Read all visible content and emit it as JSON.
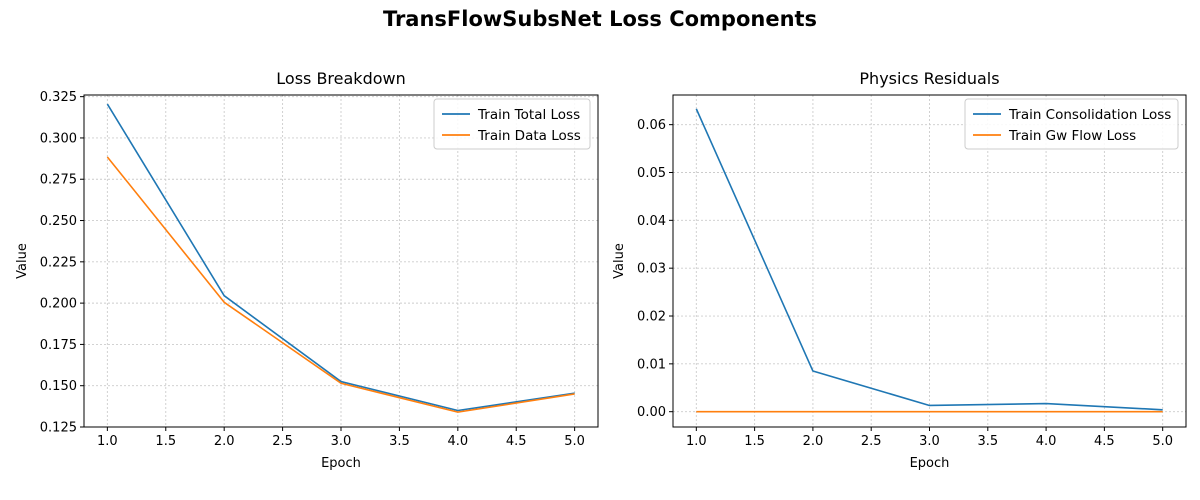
{
  "figure": {
    "title": "TransFlowSubsNet Loss Components"
  },
  "chart_data": [
    {
      "type": "line",
      "title": "Loss Breakdown",
      "xlabel": "Epoch",
      "ylabel": "Value",
      "x": [
        1,
        2,
        3,
        4,
        5
      ],
      "xlim": [
        0.8,
        5.2
      ],
      "ylim": [
        0.125,
        0.326
      ],
      "xticks": [
        "1.0",
        "1.5",
        "2.0",
        "2.5",
        "3.0",
        "3.5",
        "4.0",
        "4.5",
        "5.0"
      ],
      "yticks": [
        "0.125",
        "0.150",
        "0.175",
        "0.200",
        "0.225",
        "0.250",
        "0.275",
        "0.300",
        "0.325"
      ],
      "grid": true,
      "legend_position": "upper right",
      "series": [
        {
          "name": "Train Total Loss",
          "color": "#1f77b4",
          "values": [
            0.3205,
            0.2045,
            0.1525,
            0.135,
            0.1455
          ]
        },
        {
          "name": "Train Data Loss",
          "color": "#ff7f0e",
          "values": [
            0.2885,
            0.2005,
            0.1515,
            0.134,
            0.145
          ]
        }
      ]
    },
    {
      "type": "line",
      "title": "Physics Residuals",
      "xlabel": "Epoch",
      "ylabel": "Value",
      "x": [
        1,
        2,
        3,
        4,
        5
      ],
      "xlim": [
        0.8,
        5.2
      ],
      "ylim": [
        -0.0032,
        0.0662
      ],
      "xticks": [
        "1.0",
        "1.5",
        "2.0",
        "2.5",
        "3.0",
        "3.5",
        "4.0",
        "4.5",
        "5.0"
      ],
      "yticks": [
        "0.00",
        "0.01",
        "0.02",
        "0.03",
        "0.04",
        "0.05",
        "0.06"
      ],
      "grid": true,
      "legend_position": "upper right",
      "series": [
        {
          "name": "Train Consolidation Loss",
          "color": "#1f77b4",
          "values": [
            0.0633,
            0.0085,
            0.0013,
            0.0017,
            0.0004
          ]
        },
        {
          "name": "Train Gw Flow Loss",
          "color": "#ff7f0e",
          "values": [
            0.0,
            0.0,
            0.0,
            0.0,
            0.0
          ]
        }
      ]
    }
  ]
}
